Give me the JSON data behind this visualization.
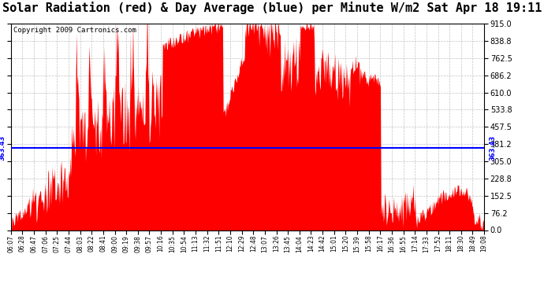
{
  "title": "Solar Radiation (red) & Day Average (blue) per Minute W/m2 Sat Apr 18 19:11",
  "copyright": "Copyright 2009 Cartronics.com",
  "y_max": 915.0,
  "y_min": 0.0,
  "y_ticks": [
    0.0,
    76.2,
    152.5,
    228.8,
    305.0,
    381.2,
    457.5,
    533.8,
    610.0,
    686.2,
    762.5,
    838.8,
    915.0
  ],
  "day_average": 363.43,
  "fill_color": "#FF0000",
  "line_color": "#0000FF",
  "bg_color": "#FFFFFF",
  "grid_color": "#AAAAAA",
  "title_fontsize": 11,
  "copyright_fontsize": 6.5,
  "x_tick_labels": [
    "06:07",
    "06:28",
    "06:47",
    "07:06",
    "07:25",
    "07:44",
    "08:03",
    "08:22",
    "08:41",
    "09:00",
    "09:19",
    "09:38",
    "09:57",
    "10:16",
    "10:35",
    "10:54",
    "11:13",
    "11:32",
    "11:51",
    "12:10",
    "12:29",
    "12:48",
    "13:07",
    "13:26",
    "13:45",
    "14:04",
    "14:23",
    "14:42",
    "15:01",
    "15:20",
    "15:39",
    "15:58",
    "16:17",
    "16:36",
    "16:55",
    "17:14",
    "17:33",
    "17:52",
    "18:11",
    "18:30",
    "18:49",
    "19:08"
  ]
}
